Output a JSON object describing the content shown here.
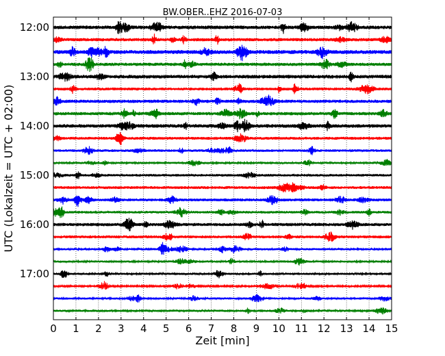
{
  "chart_data": {
    "type": "line",
    "title": "BW.OBER..EHZ 2016-07-03",
    "xlabel": "Zeit  [min]",
    "ylabel": "UTC (Lokalzeit = UTC + 02:00)",
    "xlim": [
      0,
      15
    ],
    "x_ticks": [
      "0",
      "1",
      "2",
      "3",
      "4",
      "5",
      "6",
      "7",
      "8",
      "9",
      "10",
      "11",
      "12",
      "13",
      "14",
      "15"
    ],
    "y_tick_labels": [
      "12:00",
      "13:00",
      "14:00",
      "15:00",
      "16:00",
      "17:00"
    ],
    "grid": "vertical dotted",
    "trace_colors": [
      "#000000",
      "#ff0000",
      "#0000ff",
      "#007f00"
    ],
    "trace_start_times": [
      "12:00",
      "12:15",
      "12:30",
      "12:45",
      "13:00",
      "13:15",
      "13:30",
      "13:45",
      "14:00",
      "14:15",
      "14:30",
      "14:45",
      "15:00",
      "15:15",
      "15:30",
      "15:45",
      "16:00",
      "16:15",
      "16:30",
      "16:45",
      "17:00",
      "17:15",
      "17:30",
      "17:45"
    ],
    "trace_duration_min": 15,
    "amplitude": [
      1.0,
      0.9,
      1.1,
      0.9,
      1.0,
      0.8,
      0.9,
      0.9,
      1.0,
      0.8,
      0.7,
      0.6,
      0.7,
      0.8,
      0.8,
      0.7,
      0.9,
      0.8,
      0.6,
      0.6,
      0.6,
      0.5,
      0.6,
      0.6
    ]
  }
}
